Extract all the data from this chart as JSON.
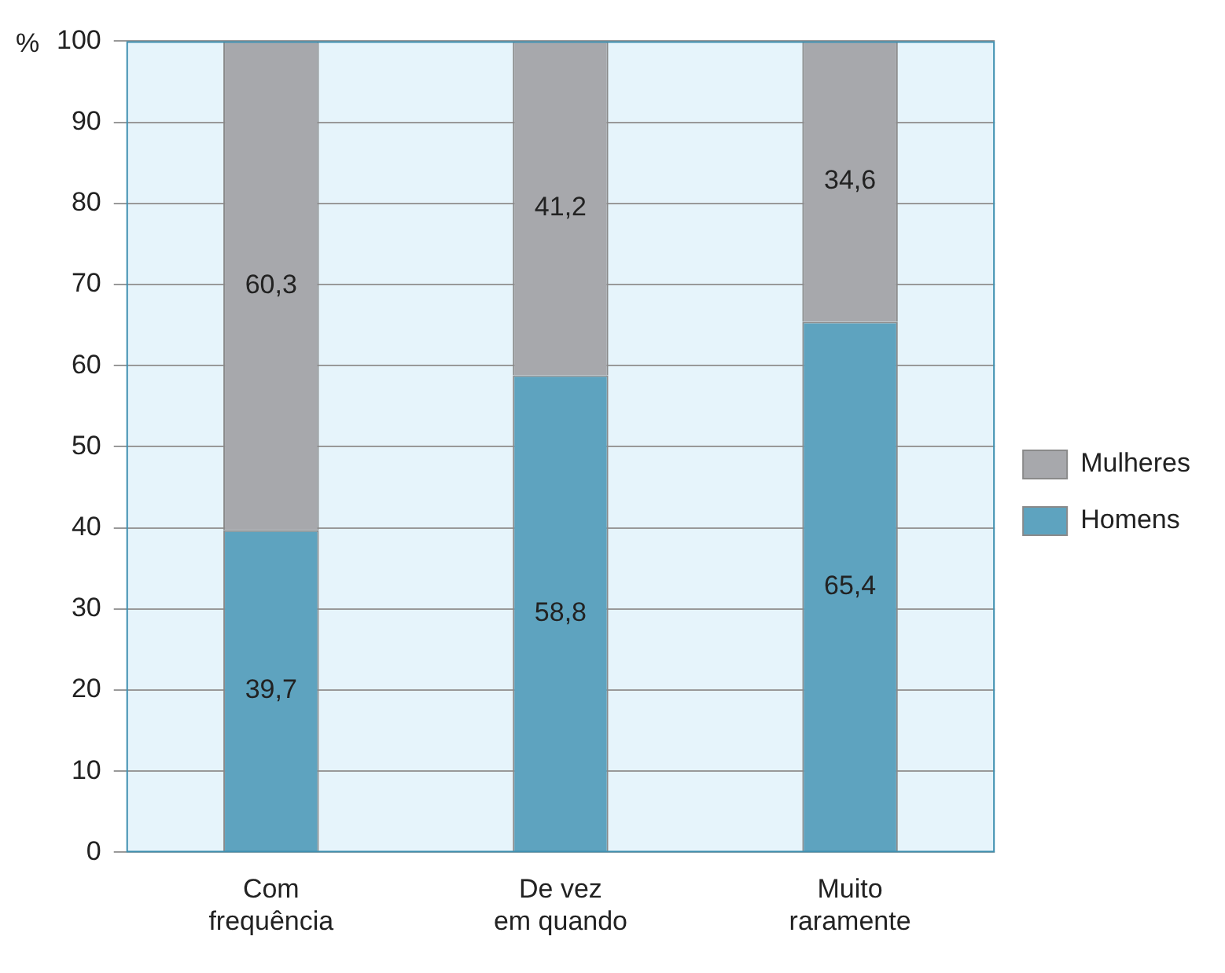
{
  "chart_data": {
    "type": "bar",
    "stacked": true,
    "ylabel": "%",
    "categories": [
      "Com\nfrequência",
      "De vez\nem quando",
      "Muito\nraramente"
    ],
    "series": [
      {
        "name": "Homens",
        "color": "#5ea3bf",
        "values": [
          39.7,
          58.8,
          65.4
        ],
        "value_labels": [
          "39,7",
          "58,8",
          "65,4"
        ]
      },
      {
        "name": "Mulheres",
        "color": "#a7a8ac",
        "values": [
          60.3,
          41.2,
          34.6
        ],
        "value_labels": [
          "60,3",
          "41,2",
          "34,6"
        ]
      }
    ],
    "ylim": [
      0,
      100
    ],
    "yticks": [
      0,
      10,
      20,
      30,
      40,
      50,
      60,
      70,
      80,
      90,
      100
    ],
    "grid": "y",
    "legend": "right"
  }
}
